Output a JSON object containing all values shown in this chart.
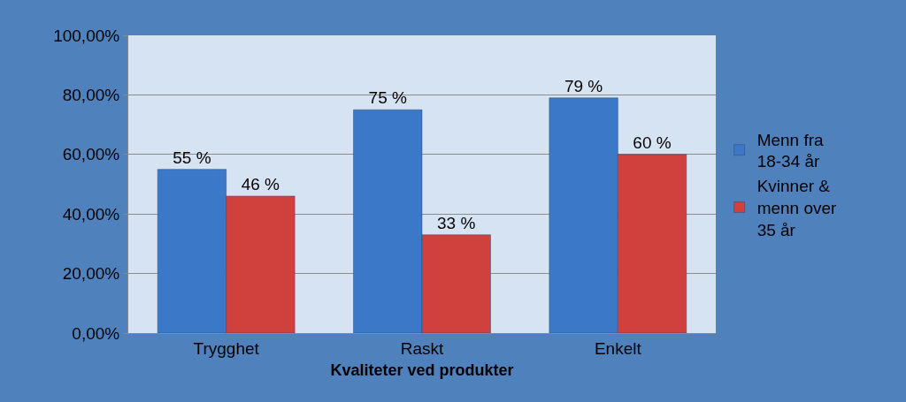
{
  "chart_data": {
    "type": "bar",
    "xlabel": "Kvaliteter ved produkter",
    "categories": [
      "Trygghet",
      "Raskt",
      "Enkelt"
    ],
    "series": [
      {
        "name": "Menn fra 18-34 år",
        "color": "#3c78c8",
        "values": [
          55,
          75,
          79
        ],
        "value_labels": [
          "55 %",
          "75 %",
          "79 %"
        ]
      },
      {
        "name": "Kvinner & menn over 35 år",
        "color": "#d0403c",
        "values": [
          46,
          33,
          60
        ],
        "value_labels": [
          "46 %",
          "33 %",
          "60 %"
        ]
      }
    ],
    "ylim": [
      0,
      100
    ],
    "yticks": [
      {
        "value": 0,
        "label": "0,00%"
      },
      {
        "value": 20,
        "label": "20,00%"
      },
      {
        "value": 40,
        "label": "40,00%"
      },
      {
        "value": 60,
        "label": "60,00%"
      },
      {
        "value": 80,
        "label": "80,00%"
      },
      {
        "value": 100,
        "label": "100,00%"
      }
    ],
    "grid": "y",
    "legend": "right"
  }
}
